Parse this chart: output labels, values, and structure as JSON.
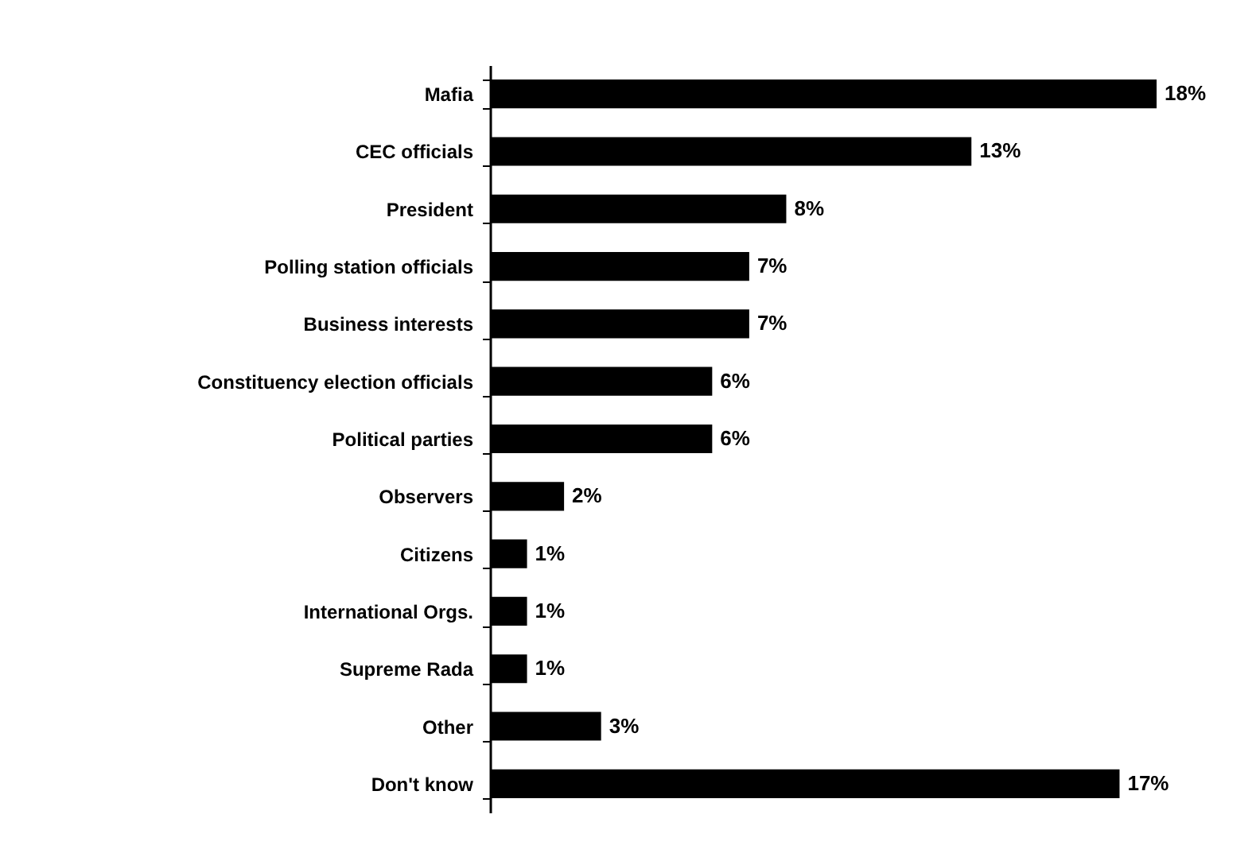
{
  "chart_data": {
    "type": "bar",
    "orientation": "horizontal",
    "categories": [
      "Mafia",
      "CEC officials",
      "President",
      "Polling station officials",
      "Business interests",
      "Constituency election officials",
      "Political parties",
      "Observers",
      "Citizens",
      "International Orgs.",
      "Supreme Rada",
      "Other",
      "Don't know"
    ],
    "values": [
      18,
      13,
      8,
      7,
      7,
      6,
      6,
      2,
      1,
      1,
      1,
      3,
      17
    ],
    "value_labels": [
      "18%",
      "13%",
      "8%",
      "7%",
      "7%",
      "6%",
      "6%",
      "2%",
      "1%",
      "1%",
      "1%",
      "3%",
      "17%"
    ],
    "color": "#000000"
  }
}
